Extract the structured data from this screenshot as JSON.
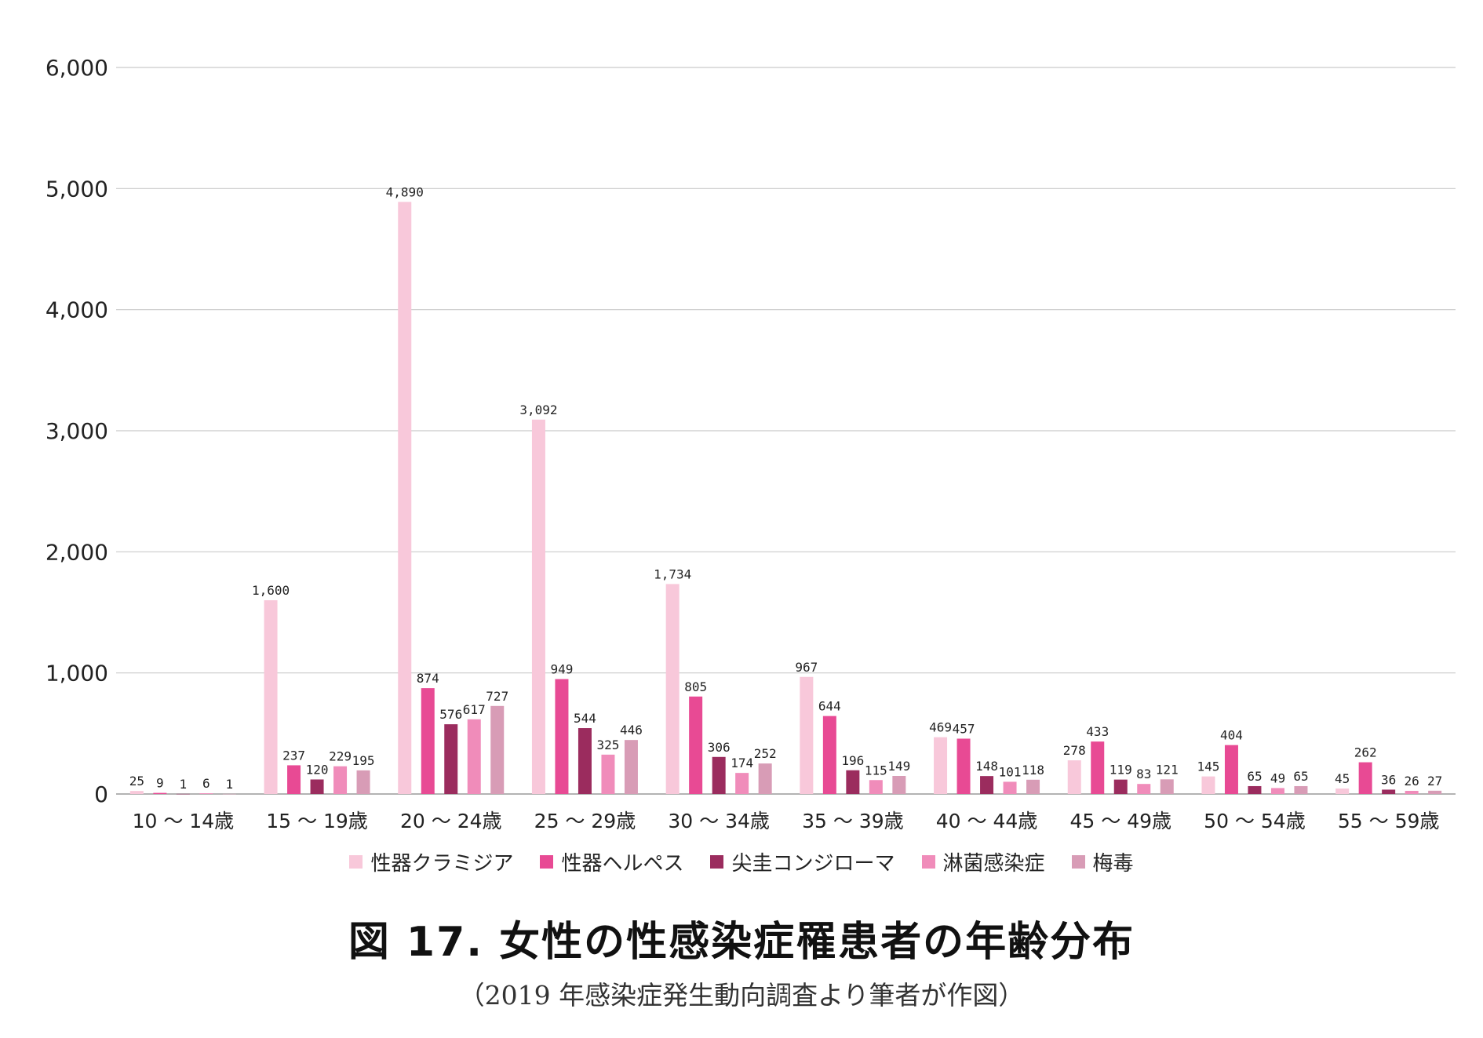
{
  "chart_data": {
    "type": "bar",
    "title": "図 17.  女性の性感染症罹患者の年齢分布",
    "subtitle": "（2019 年感染症発生動向調査より筆者が作図）",
    "xlabel": "",
    "ylabel": "",
    "ylim": [
      0,
      6000
    ],
    "yticks": [
      "0",
      "1,000",
      "2,000",
      "3,000",
      "4,000",
      "5,000",
      "6,000"
    ],
    "grid": true,
    "legend_position": "bottom",
    "categories": [
      "10 ～ 14歳",
      "15 ～ 19歳",
      "20 ～ 24歳",
      "25 ～ 29歳",
      "30 ～ 34歳",
      "35 ～ 39歳",
      "40 ～ 44歳",
      "45 ～ 49歳",
      "50 ～ 54歳",
      "55 ～ 59歳"
    ],
    "series": [
      {
        "name": "性器クラミジア",
        "color": "#f8c8da",
        "values": [
          25,
          1600,
          4890,
          3092,
          1734,
          967,
          469,
          278,
          145,
          45
        ],
        "labels": [
          "25",
          "1,600",
          "4,890",
          "3,092",
          "1,734",
          "967",
          "469",
          "278",
          "145",
          "45"
        ]
      },
      {
        "name": "性器ヘルペス",
        "color": "#e84a94",
        "values": [
          9,
          237,
          874,
          949,
          805,
          644,
          457,
          433,
          404,
          262
        ],
        "labels": [
          "9",
          "237",
          "874",
          "949",
          "805",
          "644",
          "457",
          "433",
          "404",
          "262"
        ]
      },
      {
        "name": "尖圭コンジローマ",
        "color": "#9b2c5e",
        "values": [
          1,
          120,
          576,
          544,
          306,
          196,
          148,
          119,
          65,
          36
        ],
        "labels": [
          "1",
          "120",
          "576",
          "544",
          "306",
          "196",
          "148",
          "119",
          "65",
          "36"
        ]
      },
      {
        "name": "淋菌感染症",
        "color": "#f08cba",
        "values": [
          6,
          229,
          617,
          325,
          174,
          115,
          101,
          83,
          49,
          26
        ],
        "labels": [
          "6",
          "229",
          "617",
          "325",
          "174",
          "115",
          "101",
          "83",
          "49",
          "26"
        ]
      },
      {
        "name": "梅毒",
        "color": "#d89cb6",
        "values": [
          1,
          195,
          727,
          446,
          252,
          149,
          118,
          121,
          65,
          27
        ],
        "labels": [
          "1",
          "195",
          "727",
          "446",
          "252",
          "149",
          "118",
          "121",
          "65",
          "27"
        ]
      }
    ]
  }
}
